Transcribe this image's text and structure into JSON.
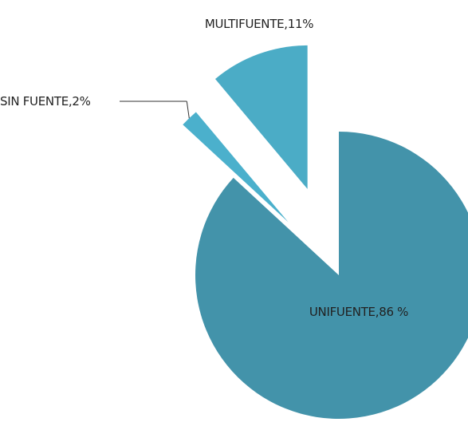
{
  "chart_data": {
    "type": "pie",
    "categories": [
      "UNIFUENTE,",
      "SIN FUENTE,",
      "MULTIFUENTE,"
    ],
    "values": [
      86,
      2,
      11
    ],
    "value_labels": [
      "86 %",
      "2%",
      "11%"
    ],
    "colors": [
      "#4393aa",
      "#4bb0cc",
      "#4bacc6"
    ]
  }
}
